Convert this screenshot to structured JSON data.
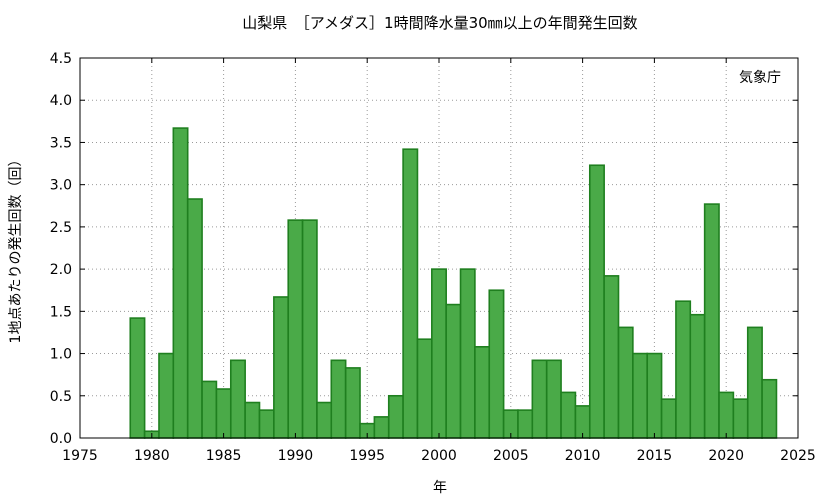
{
  "chart_data": {
    "type": "bar",
    "title": "山梨県　［アメダス］1時間降水量30㎜以上の年間発生回数",
    "annotation": "気象庁",
    "xlabel": "年",
    "ylabel": "1地点あたりの発生回数（回）",
    "xlim": [
      1975,
      2025
    ],
    "ylim": [
      0,
      4.5
    ],
    "xticks": [
      1975,
      1980,
      1985,
      1990,
      1995,
      2000,
      2005,
      2010,
      2015,
      2020,
      2025
    ],
    "yticks": [
      "0.0",
      "0.5",
      "1.0",
      "1.5",
      "2.0",
      "2.5",
      "3.0",
      "3.5",
      "4.0",
      "4.5"
    ],
    "grid": true,
    "colors": {
      "bar_fill": "#4aaa48",
      "bar_edge": "#1f7f1f"
    },
    "years": [
      1979,
      1980,
      1981,
      1982,
      1983,
      1984,
      1985,
      1986,
      1987,
      1988,
      1989,
      1990,
      1991,
      1992,
      1993,
      1994,
      1995,
      1996,
      1997,
      1998,
      1999,
      2000,
      2001,
      2002,
      2003,
      2004,
      2005,
      2006,
      2007,
      2008,
      2009,
      2010,
      2011,
      2012,
      2013,
      2014,
      2015,
      2016,
      2017,
      2018,
      2019,
      2020,
      2021,
      2022,
      2023
    ],
    "values": [
      1.42,
      0.08,
      1.0,
      3.67,
      2.83,
      0.67,
      0.58,
      0.92,
      0.42,
      0.33,
      1.67,
      2.58,
      2.58,
      0.42,
      0.92,
      0.83,
      0.17,
      0.25,
      0.5,
      3.42,
      1.17,
      2.0,
      1.58,
      2.0,
      1.08,
      1.75,
      0.33,
      0.33,
      0.92,
      0.92,
      0.54,
      0.38,
      3.23,
      1.92,
      1.31,
      1.0,
      1.0,
      0.46,
      1.62,
      1.46,
      2.77,
      0.54,
      0.46,
      1.31,
      0.69
    ]
  }
}
